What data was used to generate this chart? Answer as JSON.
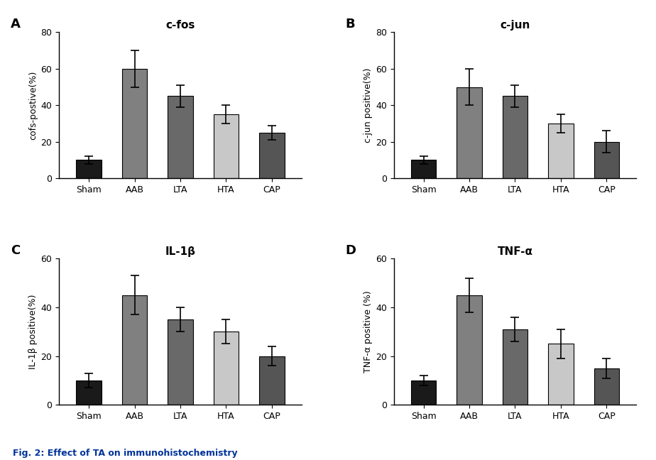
{
  "panels": [
    {
      "label": "A",
      "title": "c-fos",
      "ylabel": "cofs-postive(%)",
      "ylim": [
        0,
        80
      ],
      "yticks": [
        0,
        20,
        40,
        60,
        80
      ],
      "categories": [
        "Sham",
        "AAB",
        "LTA",
        "HTA",
        "CAP"
      ],
      "values": [
        10,
        60,
        45,
        35,
        25
      ],
      "errors": [
        2,
        10,
        6,
        5,
        4
      ],
      "colors": [
        "#1a1a1a",
        "#808080",
        "#696969",
        "#c8c8c8",
        "#555555"
      ]
    },
    {
      "label": "B",
      "title": "c-jun",
      "ylabel": "c-jun positive(%)",
      "ylim": [
        0,
        80
      ],
      "yticks": [
        0,
        20,
        40,
        60,
        80
      ],
      "categories": [
        "Sham",
        "AAB",
        "LTA",
        "HTA",
        "CAP"
      ],
      "values": [
        10,
        50,
        45,
        30,
        20
      ],
      "errors": [
        2,
        10,
        6,
        5,
        6
      ],
      "colors": [
        "#1a1a1a",
        "#808080",
        "#696969",
        "#c8c8c8",
        "#555555"
      ]
    },
    {
      "label": "C",
      "title": "IL-1β",
      "ylabel": "IL-1β positive(%)",
      "ylim": [
        0,
        60
      ],
      "yticks": [
        0,
        20,
        40,
        60
      ],
      "categories": [
        "Sham",
        "AAB",
        "LTA",
        "HTA",
        "CAP"
      ],
      "values": [
        10,
        45,
        35,
        30,
        20
      ],
      "errors": [
        3,
        8,
        5,
        5,
        4
      ],
      "colors": [
        "#1a1a1a",
        "#808080",
        "#696969",
        "#c8c8c8",
        "#555555"
      ]
    },
    {
      "label": "D",
      "title": "TNF-α",
      "ylabel": "TNF-α positive (%)",
      "ylim": [
        0,
        60
      ],
      "yticks": [
        0,
        20,
        40,
        60
      ],
      "categories": [
        "Sham",
        "AAB",
        "LTA",
        "HTA",
        "CAP"
      ],
      "values": [
        10,
        45,
        31,
        25,
        15
      ],
      "errors": [
        2,
        7,
        5,
        6,
        4
      ],
      "colors": [
        "#1a1a1a",
        "#808080",
        "#696969",
        "#c8c8c8",
        "#555555"
      ]
    }
  ],
  "figure_caption": "Fig. 2: Effect of TA on immunohistochemistry",
  "background_color": "#ffffff",
  "caption_color": "#003399",
  "caption_fontsize": 9,
  "label_fontsize": 13,
  "title_fontsize": 11,
  "tick_fontsize": 9,
  "ylabel_fontsize": 9,
  "bar_width": 0.55,
  "hspace": 0.55,
  "wspace": 0.38
}
